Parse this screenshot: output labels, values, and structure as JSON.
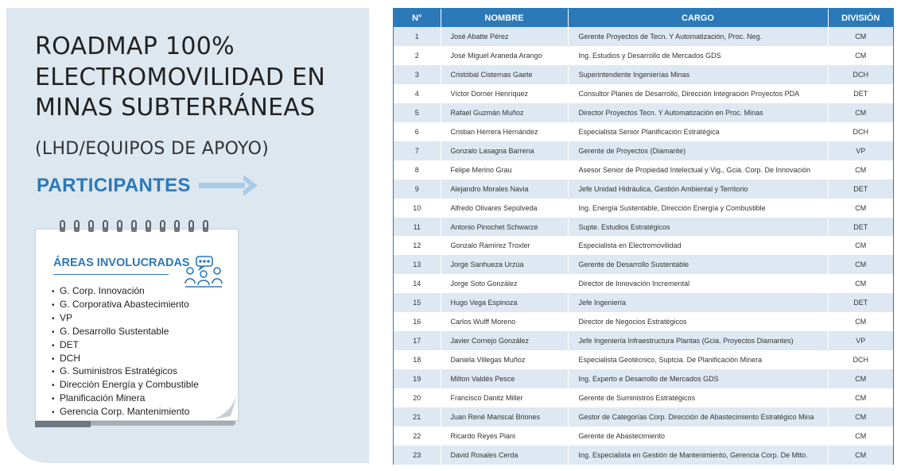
{
  "title_lines": [
    "ROADMAP 100%",
    "ELECTROMOVILIDAD EN",
    "MINAS SUBTERRÁNEAS"
  ],
  "subtitle": "(LHD/EQUIPOS DE APOYO)",
  "participantes_label": "PARTICIPANTES",
  "areas": {
    "title": "ÁREAS INVOLUCRADAS",
    "items": [
      "G. Corp. Innovación",
      "G. Corporativa Abastecimiento",
      "VP",
      "G. Desarrollo Sustentable",
      "DET",
      "DCH",
      "G. Suministros Estratégicos",
      "Dirección Energía y Combustible",
      "Planificación Minera",
      "Gerencia Corp. Mantenimiento"
    ]
  },
  "colors": {
    "accent": "#2b79b8",
    "panel": "#dde7f0",
    "row_alt": "#dde8f2"
  },
  "table": {
    "headers": [
      "N°",
      "NOMBRE",
      "CARGO",
      "DIVISIÓN"
    ],
    "rows": [
      [
        "1",
        "José Abatte Pérez",
        "Gerente Proyectos de Tecn. Y Automatización, Proc. Neg.",
        "CM"
      ],
      [
        "2",
        "José Miguel Araneda Arango",
        "Ing. Estudios y Desarrollo de Mercados GDS",
        "CM"
      ],
      [
        "3",
        "Cristóbal Cisternas Gaete",
        "Superintendente Ingenierías Minas",
        "DCH"
      ],
      [
        "4",
        "Víctor Dorner Henríquez",
        "Consultor Planes de Desarrollo, Dirección Integración Proyectos PDA",
        "DET"
      ],
      [
        "5",
        "Rafael Guzmán Muñoz",
        "Director Proyectos Tecn. Y Automatización en Proc. Minas",
        "CM"
      ],
      [
        "6",
        "Cristian Herrera Hernández",
        "Especialista Senior Planificación Estratégica",
        "DCH"
      ],
      [
        "7",
        "Gonzalo Lasagna Barrena",
        "Gerente de Proyectos (Diamante)",
        "VP"
      ],
      [
        "8",
        "Felipe Merino Grau",
        "Asesor Senior de Propiedad Intelectual y Vig., Gcia. Corp. De Innovación",
        "CM"
      ],
      [
        "9",
        "Alejandro Morales Navia",
        "Jefe Unidad Hidráulica, Gestión Ambiental y Territorio",
        "DET"
      ],
      [
        "10",
        "Alfredo Olivares Sepúlveda",
        "Ing. Energía Sustentable, Dirección Energía y Combustible",
        "CM"
      ],
      [
        "11",
        "Antonio Pinochet Schwarze",
        "Supte. Estudios Estratégicos",
        "DET"
      ],
      [
        "12",
        "Gonzalo Ramírez Troxler",
        "Especialista en Electromovilidad",
        "CM"
      ],
      [
        "13",
        "Jorge Sanhueza Urzúa",
        "Gerente  de Desarrollo Sustentable",
        "CM"
      ],
      [
        "14",
        "Jorge Soto González",
        "Director de Innovación Incremental",
        "CM"
      ],
      [
        "15",
        "Hugo Vega Espinoza",
        "Jefe Ingeniería",
        "DET"
      ],
      [
        "16",
        "Carlos Wulff Moreno",
        "Director de Negocios Estratégicos",
        "CM"
      ],
      [
        "17",
        "Javier Cornejo González",
        "Jefe Ingeniería Infraestructura Plantas (Gcia. Proyectos Diamantes)",
        "VP"
      ],
      [
        "18",
        "Daniela Villegas Muñoz",
        "Especialista Geotécnico, Suptcia. De Planificación Minera",
        "DCH"
      ],
      [
        "19",
        "Milton Valdés Pesce",
        "Ing. Experto e Desarrollo de Mercados GDS",
        "CM"
      ],
      [
        "20",
        "Francisco Danitz Miller",
        "Gerente de Suministros Estratégicos",
        "CM"
      ],
      [
        "21",
        "Juan René Mariscal Briones",
        "Gestor de Categorías Corp. Dirección de Abastecimiento Estratégico Mina",
        "CM"
      ],
      [
        "22",
        "Ricardo Reyes Piani",
        "Gerente de Abastecimiento",
        "CM"
      ],
      [
        "23",
        "David Rosales Cerda",
        "Ing. Especialista en Gestión de Mantenimiento, Gerencia Corp. De Mtto.",
        "CM"
      ]
    ]
  }
}
